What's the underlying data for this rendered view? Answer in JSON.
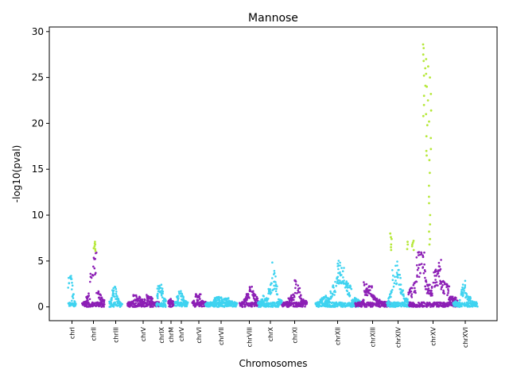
{
  "chart_data": {
    "type": "scatter",
    "title": "Mannose",
    "xlabel": "Chromosomes",
    "ylabel": "-log10(pval)",
    "ylim": [
      -1.5,
      30.5
    ],
    "yticks": [
      0,
      5,
      10,
      15,
      20,
      25,
      30
    ],
    "grid": false,
    "legend": "none",
    "colors": {
      "cyan": "#3fd3f0",
      "purple": "#8c1fb5",
      "lime": "#b6e83a",
      "axis": "#000000",
      "background": "#ffffff"
    },
    "threshold": 6,
    "chromosomes": [
      {
        "label": "chrI",
        "color": "cyan",
        "segments": [
          [
            2.0,
            4.5
          ],
          [
            4.4,
            3.2
          ],
          [
            1.0,
            1.6
          ],
          [
            0.7,
            0.4
          ]
        ]
      },
      {
        "label": "chrII",
        "color": "purple",
        "segments": [
          [
            0.4,
            0.6
          ],
          [
            1.0,
            1.5
          ],
          [
            2.8,
            4.8
          ],
          [
            6.0,
            5.2
          ],
          [
            1.8,
            1.2
          ],
          [
            1.0,
            0.8
          ]
        ]
      },
      {
        "label": "chrIII",
        "color": "cyan",
        "segments": [
          [
            0.5,
            1.2
          ],
          [
            1.8,
            2.0
          ],
          [
            1.6,
            0.8
          ],
          [
            0.6,
            0.4
          ]
        ]
      },
      {
        "label": "chrV",
        "color": "purple",
        "segments": [
          [
            0.4,
            0.6
          ],
          [
            1.2,
            1.0
          ],
          [
            0.8,
            0.7
          ],
          [
            1.2,
            0.9
          ],
          [
            0.5,
            0.5
          ]
        ]
      },
      {
        "label": "chrIX",
        "color": "cyan",
        "segments": [
          [
            1.5,
            2.5
          ],
          [
            2.7,
            1.5
          ],
          [
            0.9,
            0.6
          ]
        ]
      },
      {
        "label": "chrM",
        "color": "purple",
        "segments": [
          [
            0.6,
            0.8
          ],
          [
            0.7,
            0.5
          ]
        ]
      },
      {
        "label": "chrV",
        "color": "cyan",
        "segments": [
          [
            0.4,
            1.6
          ],
          [
            1.8,
            1.0
          ],
          [
            0.7,
            0.5
          ]
        ]
      },
      {
        "label": "chrVI",
        "color": "purple",
        "segments": [
          [
            0.5,
            1.4
          ],
          [
            1.0,
            1.5
          ],
          [
            0.7,
            0.5
          ]
        ]
      },
      {
        "label": "chrVII",
        "color": "cyan",
        "segments": [
          [
            0.3,
            0.5
          ],
          [
            0.8,
            1.1
          ],
          [
            0.7,
            0.9
          ],
          [
            0.6,
            0.4
          ]
        ]
      },
      {
        "label": "chrVIII",
        "color": "purple",
        "segments": [
          [
            0.4,
            0.9
          ],
          [
            1.2,
            2.4
          ],
          [
            1.6,
            0.7
          ]
        ]
      },
      {
        "label": "chrX",
        "color": "cyan",
        "segments": [
          [
            0.5,
            0.8
          ],
          [
            1.1,
            0.8
          ],
          [
            1.5,
            3.2
          ],
          [
            5.0,
            1.2
          ],
          [
            0.8,
            0.6
          ]
        ]
      },
      {
        "label": "chrXI",
        "color": "purple",
        "segments": [
          [
            0.3,
            0.6
          ],
          [
            0.8,
            1.4
          ],
          [
            2.8,
            1.6
          ],
          [
            0.9,
            0.5
          ]
        ]
      },
      {
        "label": "chrXII",
        "color": "cyan",
        "segments": [
          [
            0.4,
            0.9
          ],
          [
            1.2,
            0.8
          ],
          [
            1.6,
            3.0
          ],
          [
            4.6,
            3.6
          ],
          [
            2.6,
            1.8
          ],
          [
            1.0,
            0.6
          ]
        ]
      },
      {
        "label": "chrXIII",
        "color": "purple",
        "segments": [
          [
            0.3,
            0.7
          ],
          [
            2.4,
            2.0
          ],
          [
            1.2,
            0.6
          ],
          [
            0.5,
            0.5
          ]
        ]
      },
      {
        "label": "chrXIV",
        "color": "cyan",
        "segments": [
          [
            0.5,
            1.8
          ],
          [
            3.0,
            5.2
          ],
          [
            4.6,
            3.2
          ],
          [
            2.4,
            1.4
          ],
          [
            1.0,
            0.6
          ]
        ]
      },
      {
        "label": "chrXV",
        "color": "purple",
        "segments": [
          [
            1.5,
            2.8
          ],
          [
            6.0,
            5.5
          ],
          [
            3.0,
            1.8
          ],
          [
            3.6,
            4.6
          ],
          [
            3.0,
            2.0
          ],
          [
            1.2,
            0.8
          ]
        ]
      },
      {
        "label": "chrXVI",
        "color": "cyan",
        "segments": [
          [
            0.4,
            0.7
          ],
          [
            1.0,
            2.8
          ],
          [
            1.6,
            0.8
          ],
          [
            0.6,
            0.5
          ]
        ]
      }
    ],
    "highlight_points": [
      {
        "chrom": "chrII",
        "pos": 0.55,
        "values": [
          6.1,
          6.3,
          6.6,
          6.8,
          7.1,
          6.9,
          6.4
        ]
      },
      {
        "chrom": "chrXIV",
        "pos": 0.15,
        "values": [
          6.2,
          6.8,
          7.4,
          8.0,
          7.6,
          6.5
        ]
      },
      {
        "chrom": "chrXIV",
        "pos": 0.95,
        "values": [
          6.3,
          6.8,
          7.1
        ]
      },
      {
        "chrom": "chrXV",
        "pos": 0.08,
        "values": [
          6.2,
          6.6,
          7.0,
          7.2,
          6.8
        ]
      },
      {
        "chrom": "chrXV",
        "pos": 0.32,
        "values": [
          28.6,
          28.2,
          27.5,
          26.8,
          26.0,
          25.2,
          24.1,
          23.0,
          22.0,
          20.8
        ]
      },
      {
        "chrom": "chrXV",
        "pos": 0.38,
        "values": [
          27.0,
          26.2,
          25.4,
          24.0,
          22.5,
          21.0,
          19.8,
          18.6,
          17.0,
          16.5
        ]
      },
      {
        "chrom": "chrXV",
        "pos": 0.44,
        "values": [
          25.0,
          23.2,
          21.4,
          20.2,
          18.4,
          17.2,
          16.0,
          14.6,
          13.2,
          12.0,
          11.3,
          10.0,
          9.0,
          8.2,
          7.4,
          6.8
        ]
      }
    ]
  }
}
